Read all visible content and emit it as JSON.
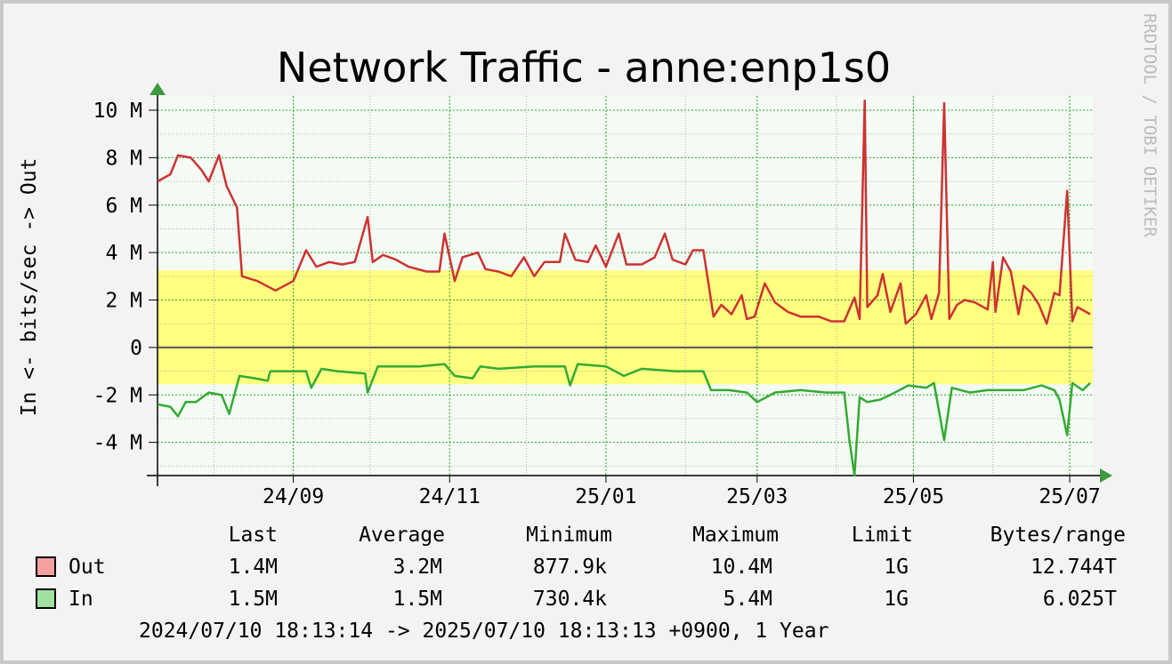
{
  "chart_data": {
    "type": "line",
    "title": "Network Traffic - anne:enp1s0",
    "ylabel": "In <- bits/sec -> Out",
    "watermark": "RRDTOOL / TOBI OETIKER",
    "xlim": [
      0,
      365
    ],
    "xticks": [
      {
        "value": 53,
        "label": "24/09"
      },
      {
        "value": 114,
        "label": "24/11"
      },
      {
        "value": 175,
        "label": "25/01"
      },
      {
        "value": 234,
        "label": "25/03"
      },
      {
        "value": 295,
        "label": "25/05"
      },
      {
        "value": 356,
        "label": "25/07"
      }
    ],
    "x_minor_ticks": [
      22,
      83,
      144,
      206,
      265,
      326
    ],
    "ylim": [
      -5.4,
      10.6
    ],
    "yticks": [
      {
        "value": -4,
        "label": "-4 M"
      },
      {
        "value": -2,
        "label": "-2 M"
      },
      0,
      {
        "value": 2,
        "label": "2 M"
      },
      {
        "value": 4,
        "label": "4 M"
      },
      {
        "value": 6,
        "label": "6 M"
      },
      {
        "value": 8,
        "label": "8 M"
      },
      {
        "value": 10,
        "label": "10 M"
      }
    ],
    "y_minor_ticks": [
      -5,
      -3,
      -1,
      1,
      3,
      5,
      7,
      9
    ],
    "grid": true,
    "highlight_band": {
      "color": "#ffff80",
      "range": [
        -1.55,
        3.25
      ]
    },
    "series": [
      {
        "name": "Out",
        "color": "#cc3333",
        "swatch_color": "#f4a0a0",
        "x": [
          0,
          5,
          8,
          13,
          17,
          20,
          24,
          27,
          31,
          33,
          39,
          46,
          53,
          58,
          62,
          67,
          72,
          77,
          82,
          84,
          88,
          93,
          98,
          105,
          110,
          112,
          116,
          119,
          125,
          128,
          133,
          138,
          143,
          147,
          151,
          157,
          159,
          163,
          168,
          171,
          175,
          180,
          183,
          189,
          194,
          198,
          201,
          206,
          209,
          213,
          215,
          217,
          220,
          224,
          228,
          230,
          233,
          237,
          241,
          246,
          251,
          258,
          263,
          268,
          272,
          274,
          276,
          277,
          281,
          283,
          286,
          290,
          292,
          296,
          300,
          302,
          305,
          307,
          309,
          312,
          315,
          319,
          324,
          326,
          327,
          330,
          333,
          336,
          338,
          341,
          344,
          347,
          350,
          352,
          355,
          357,
          359,
          364
        ],
        "values": [
          7.0,
          7.3,
          8.1,
          8.0,
          7.5,
          7.0,
          8.1,
          6.8,
          5.9,
          3.0,
          2.8,
          2.4,
          2.8,
          4.1,
          3.4,
          3.6,
          3.5,
          3.6,
          5.5,
          3.6,
          3.9,
          3.7,
          3.4,
          3.2,
          3.2,
          4.8,
          2.8,
          3.8,
          4.0,
          3.3,
          3.2,
          3.0,
          3.8,
          3.0,
          3.6,
          3.6,
          4.8,
          3.7,
          3.6,
          4.3,
          3.4,
          4.8,
          3.5,
          3.5,
          3.8,
          4.8,
          3.7,
          3.5,
          4.1,
          4.1,
          2.7,
          1.3,
          1.8,
          1.4,
          2.2,
          1.2,
          1.3,
          2.7,
          1.9,
          1.5,
          1.3,
          1.3,
          1.1,
          1.1,
          2.1,
          1.2,
          10.4,
          1.7,
          2.2,
          3.1,
          1.5,
          2.7,
          1.0,
          1.4,
          2.2,
          1.2,
          2.3,
          10.3,
          1.2,
          1.8,
          2.0,
          1.9,
          1.6,
          3.6,
          1.5,
          3.8,
          3.2,
          1.4,
          2.6,
          2.3,
          1.8,
          1.0,
          2.3,
          2.2,
          6.6,
          1.1,
          1.7,
          1.4
        ],
        "stats": [
          "1.4M",
          "3.2M",
          "877.9k",
          "10.4M",
          "1G",
          "12.744T"
        ]
      },
      {
        "name": "In",
        "color": "#33aa33",
        "swatch_color": "#a0e0a0",
        "x": [
          0,
          5,
          8,
          11,
          15,
          20,
          25,
          28,
          32,
          38,
          43,
          44,
          50,
          58,
          60,
          64,
          70,
          81,
          82,
          86,
          95,
          102,
          112,
          116,
          123,
          126,
          133,
          147,
          159,
          161,
          164,
          175,
          182,
          189,
          202,
          213,
          216,
          223,
          230,
          234,
          241,
          251,
          261,
          268,
          270,
          272,
          274,
          277,
          282,
          286,
          293,
          300,
          303,
          307,
          310,
          317,
          324,
          331,
          338,
          345,
          350,
          352,
          355,
          357,
          361,
          364
        ],
        "values": [
          -2.4,
          -2.5,
          -2.9,
          -2.3,
          -2.3,
          -1.9,
          -2.0,
          -2.8,
          -1.2,
          -1.3,
          -1.4,
          -1.0,
          -1.0,
          -1.0,
          -1.7,
          -0.9,
          -1.0,
          -1.1,
          -1.9,
          -0.8,
          -0.8,
          -0.8,
          -0.7,
          -1.2,
          -1.3,
          -0.8,
          -0.9,
          -0.8,
          -0.8,
          -1.6,
          -0.7,
          -0.8,
          -1.2,
          -0.9,
          -1.0,
          -1.0,
          -1.8,
          -1.8,
          -1.9,
          -2.3,
          -1.9,
          -1.8,
          -1.9,
          -1.9,
          -3.9,
          -5.4,
          -2.1,
          -2.3,
          -2.2,
          -2.0,
          -1.6,
          -1.7,
          -1.5,
          -3.9,
          -1.7,
          -1.9,
          -1.8,
          -1.8,
          -1.8,
          -1.6,
          -1.8,
          -2.2,
          -3.7,
          -1.5,
          -1.8,
          -1.5
        ],
        "stats": [
          "1.5M",
          "1.5M",
          "730.4k",
          "5.4M",
          "1G",
          "6.025T"
        ]
      }
    ],
    "stats_headers": [
      "Last",
      "Average",
      "Minimum",
      "Maximum",
      "Limit",
      "Bytes/range"
    ],
    "footer": "2024/07/10 18:13:14 -> 2025/07/10 18:13:13 +0900, 1 Year"
  }
}
